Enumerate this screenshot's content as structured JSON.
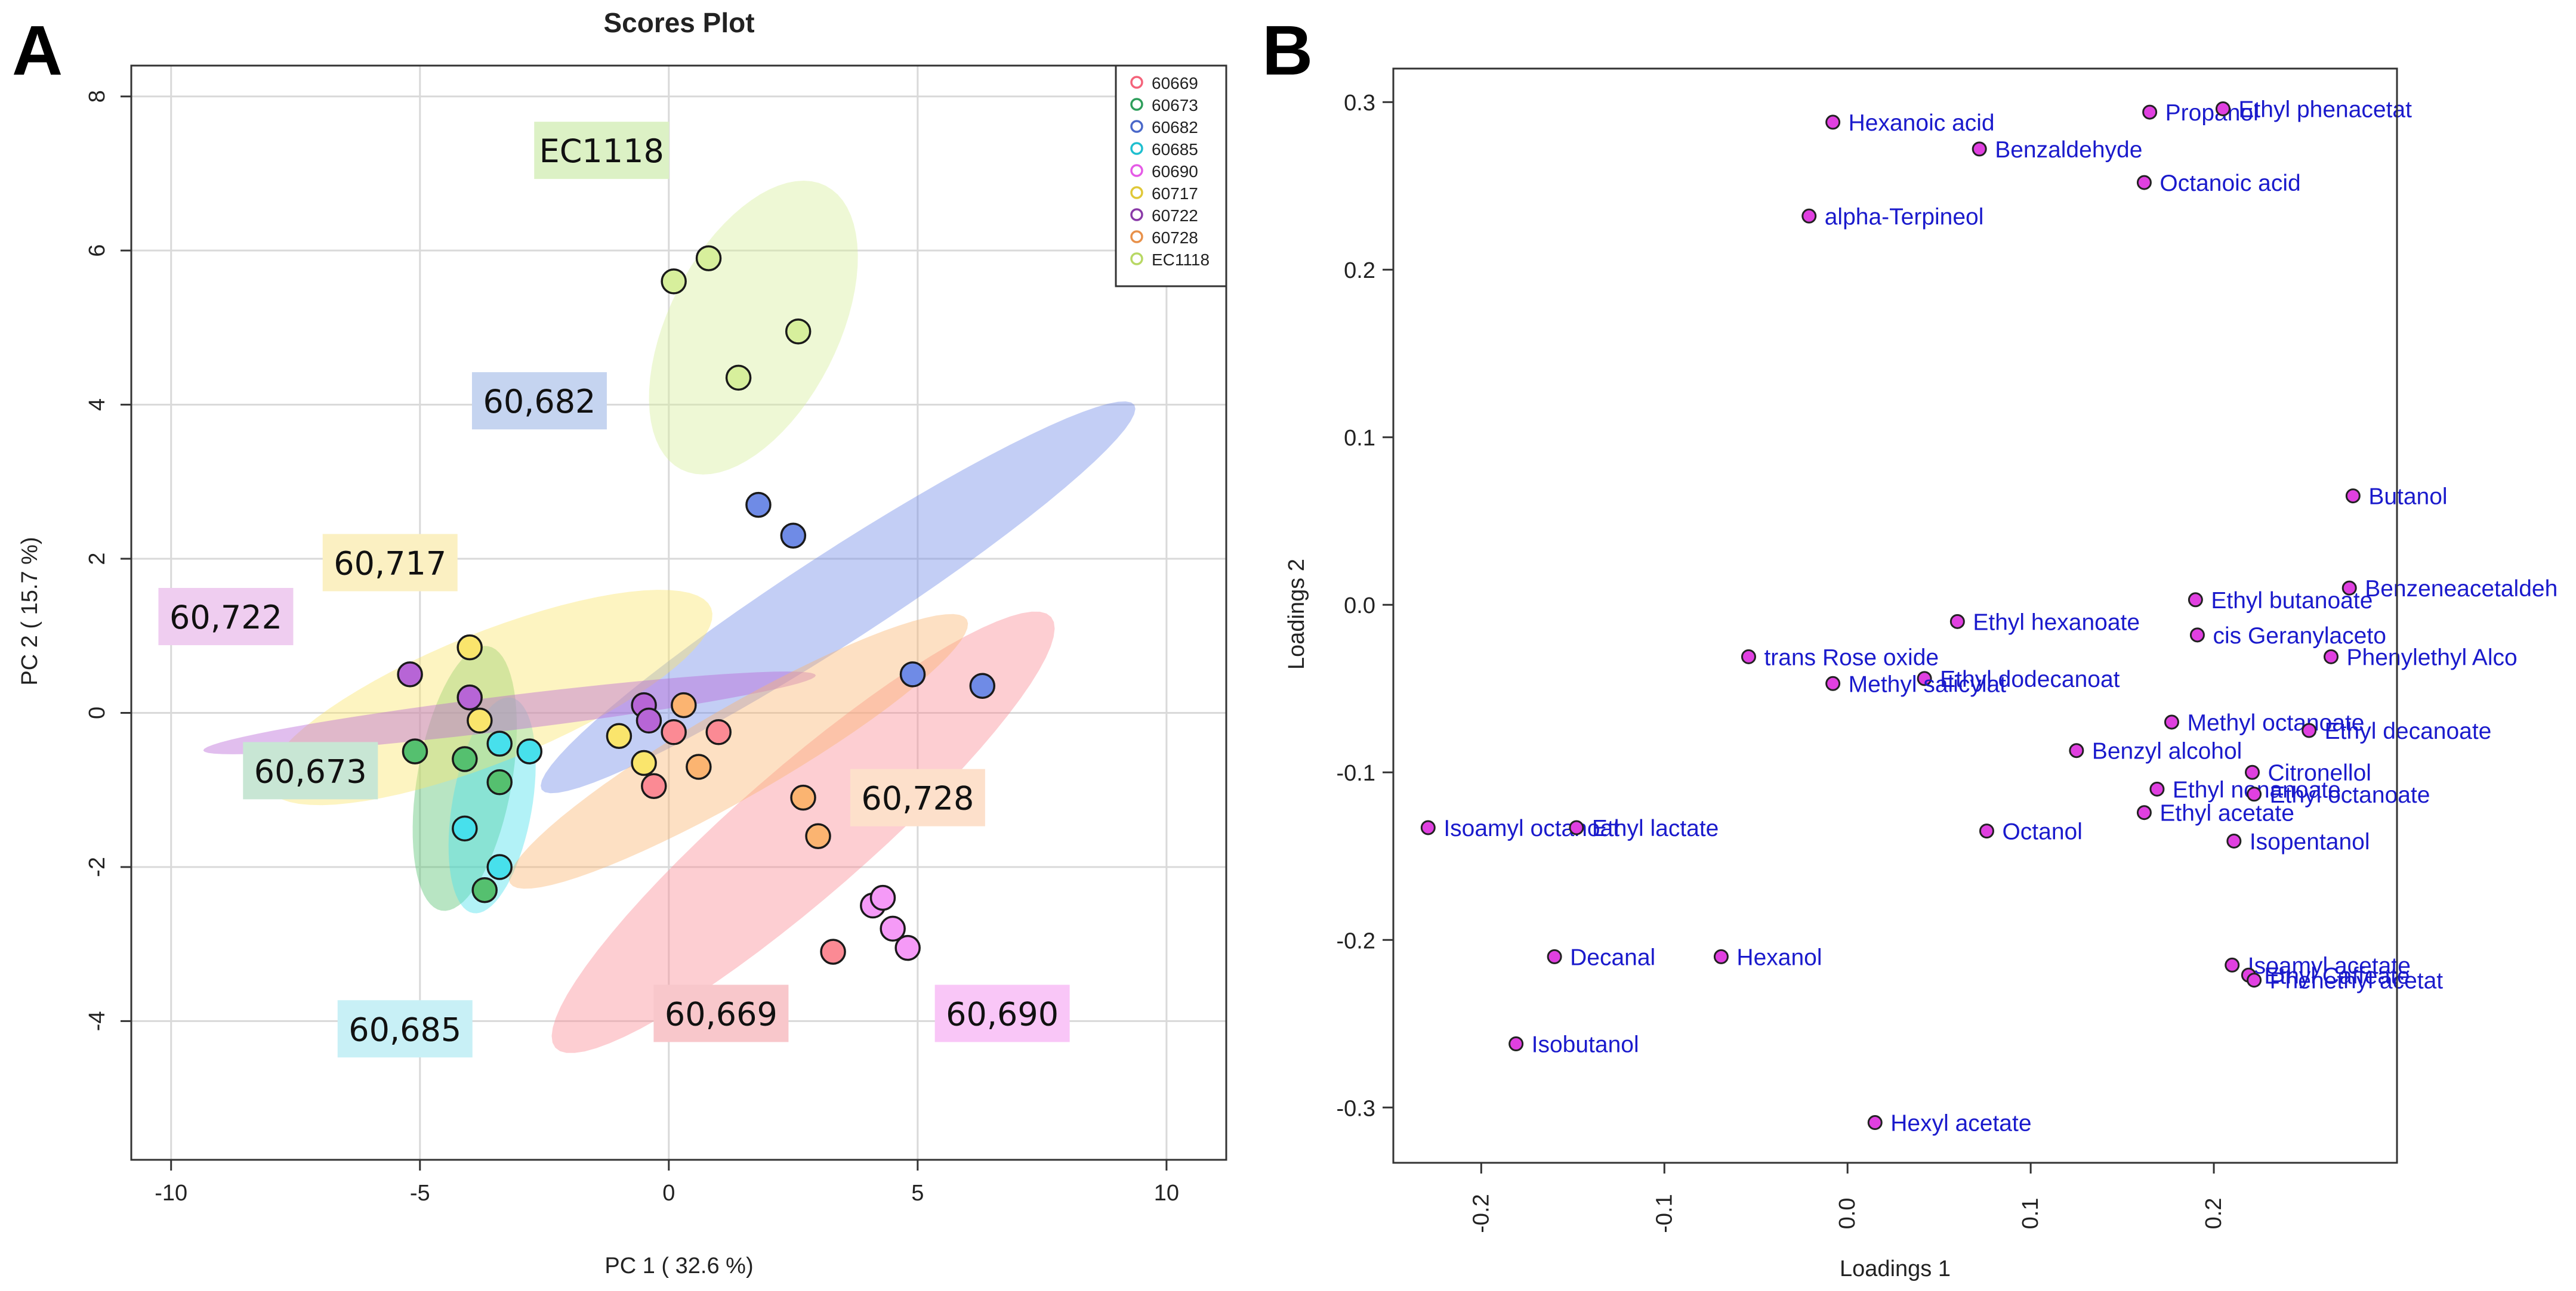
{
  "chart_data": [
    {
      "type": "scatter",
      "panel": "A",
      "title": "Scores Plot",
      "xlabel": "PC 1 ( 32.6 %)",
      "ylabel": "PC 2 ( 15.7 %)",
      "xlim": [
        -10.8,
        11.2
      ],
      "ylim": [
        -5.8,
        8.4
      ],
      "xticks": [
        -10,
        -5,
        0,
        5,
        10
      ],
      "yticks": [
        -4,
        -2,
        0,
        2,
        4,
        6,
        8
      ],
      "grid": true,
      "legend_position": "top-right",
      "series": [
        {
          "name": "60669",
          "color": "#f4637a",
          "fill": "#fb8a94",
          "ellipse": {
            "cx": 2.7,
            "cy": -1.55,
            "rx": 6.6,
            "ry": 1.3,
            "angle": -41
          },
          "points": [
            [
              3.3,
              -3.1
            ]
          ]
        },
        {
          "name": "60673",
          "color": "#2e9e5b",
          "fill": "#55c06f",
          "ellipse": {
            "cx": -4.1,
            "cy": -0.85,
            "rx": 2.7,
            "ry": 0.95,
            "angle": -80
          },
          "points": [
            [
              -5.1,
              -0.5
            ],
            [
              -4.1,
              -0.6
            ],
            [
              -3.4,
              -0.9
            ],
            [
              -3.7,
              -2.3
            ]
          ]
        },
        {
          "name": "60682",
          "color": "#4a68c9",
          "fill": "#6f8be6",
          "ellipse": {
            "cx": 3.4,
            "cy": 1.5,
            "rx": 7.1,
            "ry": 0.9,
            "angle": -33
          },
          "points": [
            [
              1.8,
              2.7
            ],
            [
              2.5,
              2.3
            ],
            [
              4.9,
              0.5
            ],
            [
              6.3,
              0.35
            ]
          ]
        },
        {
          "name": "60685",
          "color": "#1fbfcf",
          "fill": "#47e0ec",
          "ellipse": {
            "cx": -3.55,
            "cy": -1.2,
            "rx": 2.2,
            "ry": 0.8,
            "angle": -80
          },
          "points": [
            [
              -3.4,
              -0.4
            ],
            [
              -2.8,
              -0.5
            ],
            [
              -4.1,
              -1.5
            ],
            [
              -3.4,
              -2.0
            ]
          ]
        },
        {
          "name": "60690",
          "color": "#e55ae6",
          "fill": "#f59af7",
          "ellipse": null,
          "points": [
            [
              4.1,
              -2.5
            ],
            [
              4.3,
              -2.4
            ],
            [
              4.5,
              -2.8
            ],
            [
              4.8,
              -3.05
            ]
          ]
        },
        {
          "name": "60717",
          "color": "#e0c838",
          "fill": "#fae56c",
          "ellipse": {
            "cx": -3.6,
            "cy": 0.2,
            "rx": 4.8,
            "ry": 1.3,
            "angle": -22
          },
          "points": [
            [
              -4.0,
              0.85
            ],
            [
              -3.8,
              -0.1
            ],
            [
              -1.0,
              -0.3
            ],
            [
              -0.5,
              -0.65
            ]
          ]
        },
        {
          "name": "60722",
          "color": "#8a3aa8",
          "fill": "#b765d6",
          "ellipse": {
            "cx": -3.2,
            "cy": 0.0,
            "rx": 6.2,
            "ry": 0.35,
            "angle": -7
          },
          "points": [
            [
              -5.2,
              0.5
            ],
            [
              -4.0,
              0.2
            ],
            [
              -0.5,
              0.1
            ],
            [
              -0.4,
              -0.1
            ]
          ]
        },
        {
          "name": "60728",
          "color": "#e8914a",
          "fill": "#fbb471",
          "ellipse": {
            "cx": 1.4,
            "cy": -0.5,
            "rx": 5.3,
            "ry": 0.9,
            "angle": -30
          },
          "points": [
            [
              0.3,
              0.1
            ],
            [
              0.6,
              -0.7
            ],
            [
              2.7,
              -1.1
            ],
            [
              3.0,
              -1.6
            ]
          ]
        },
        {
          "name": "EC1118",
          "color": "#b8d864",
          "fill": "#d7ef9c",
          "ellipse": {
            "cx": 1.7,
            "cy": 5.0,
            "rx": 3.2,
            "ry": 1.7,
            "angle": -63
          },
          "points": [
            [
              0.1,
              5.6
            ],
            [
              0.8,
              5.9
            ],
            [
              2.6,
              4.95
            ],
            [
              1.4,
              4.35
            ]
          ]
        }
      ],
      "extra_points": [
        {
          "series": "60669",
          "points": [
            [
              0.1,
              -0.25
            ],
            [
              -0.3,
              -0.95
            ],
            [
              1.0,
              -0.25
            ]
          ]
        }
      ],
      "group_labels": [
        {
          "text": "EC1118",
          "series": "EC1118",
          "x": -1.35,
          "y": 7.3,
          "bg": "#dcf1c5"
        },
        {
          "text": "60,682",
          "series": "60682",
          "x": -2.6,
          "y": 4.05,
          "bg": "#c5d4f0"
        },
        {
          "text": "60,717",
          "series": "60717",
          "x": -5.6,
          "y": 1.95,
          "bg": "#fbf0c2"
        },
        {
          "text": "60,722",
          "series": "60722",
          "x": -8.9,
          "y": 1.25,
          "bg": "#efcdf0"
        },
        {
          "text": "60,673",
          "series": "60673",
          "x": -7.2,
          "y": -0.75,
          "bg": "#c8e6d4"
        },
        {
          "text": "60,728",
          "series": "60728",
          "x": 5.0,
          "y": -1.1,
          "bg": "#fde0cb"
        },
        {
          "text": "60,685",
          "series": "60685",
          "x": -5.3,
          "y": -4.1,
          "bg": "#c8f0f6"
        },
        {
          "text": "60,669",
          "series": "60669",
          "x": 1.05,
          "y": -3.9,
          "bg": "#f8c7cb"
        },
        {
          "text": "60,690",
          "series": "60690",
          "x": 6.7,
          "y": -3.9,
          "bg": "#f9c6f7"
        }
      ]
    },
    {
      "type": "scatter",
      "panel": "B",
      "title": "",
      "xlabel": "Loadings 1",
      "ylabel": "Loadings 2",
      "xlim": [
        -0.248,
        0.3
      ],
      "ylim": [
        -0.333,
        0.32
      ],
      "xticks": [
        -0.2,
        -0.1,
        0.0,
        0.1,
        0.2
      ],
      "yticks": [
        -0.3,
        -0.2,
        -0.1,
        0.0,
        0.1,
        0.2,
        0.3
      ],
      "grid": false,
      "point_color": "#e040e0",
      "label_color": "#1a1acc",
      "points": [
        {
          "label": "Hexanoic acid",
          "x": -0.008,
          "y": 0.288
        },
        {
          "label": "Propanol",
          "x": 0.165,
          "y": 0.294
        },
        {
          "label": "Ethyl phenacetat",
          "x": 0.205,
          "y": 0.296
        },
        {
          "label": "Benzaldehyde",
          "x": 0.072,
          "y": 0.272
        },
        {
          "label": "Octanoic acid",
          "x": 0.162,
          "y": 0.252
        },
        {
          "label": "alpha-Terpineol",
          "x": -0.021,
          "y": 0.232
        },
        {
          "label": "Butanol",
          "x": 0.276,
          "y": 0.065
        },
        {
          "label": "Benzeneacetaldeh",
          "x": 0.274,
          "y": 0.01
        },
        {
          "label": "Ethyl butanoate",
          "x": 0.19,
          "y": 0.003
        },
        {
          "label": "Ethyl hexanoate",
          "x": 0.06,
          "y": -0.01
        },
        {
          "label": "cis Geranylaceto",
          "x": 0.191,
          "y": -0.018
        },
        {
          "label": "Phenylethyl Alco",
          "x": 0.264,
          "y": -0.031
        },
        {
          "label": "trans Rose oxide",
          "x": -0.054,
          "y": -0.031
        },
        {
          "label": "Ethyl dodecanoat",
          "x": 0.042,
          "y": -0.044
        },
        {
          "label": "Methyl salicylat",
          "x": -0.008,
          "y": -0.047
        },
        {
          "label": "Methyl octanoate",
          "x": 0.177,
          "y": -0.07
        },
        {
          "label": "Ethyl decanoate",
          "x": 0.252,
          "y": -0.075
        },
        {
          "label": "Benzyl alcohol",
          "x": 0.125,
          "y": -0.087
        },
        {
          "label": "Citronellol",
          "x": 0.221,
          "y": -0.1
        },
        {
          "label": "Ethyl nonanoate",
          "x": 0.169,
          "y": -0.11
        },
        {
          "label": "Ethyl octanoate",
          "x": 0.222,
          "y": -0.113
        },
        {
          "label": "Ethyl acetate",
          "x": 0.162,
          "y": -0.124
        },
        {
          "label": "Isoamyl octanoat",
          "x": -0.229,
          "y": -0.133
        },
        {
          "label": "Ethyl lactate",
          "x": -0.148,
          "y": -0.133
        },
        {
          "label": "Octanol",
          "x": 0.076,
          "y": -0.135
        },
        {
          "label": "Isopentanol",
          "x": 0.211,
          "y": -0.141
        },
        {
          "label": "Decanal",
          "x": -0.16,
          "y": -0.21
        },
        {
          "label": "Hexanol",
          "x": -0.069,
          "y": -0.21
        },
        {
          "label": "Isoamyl acetate",
          "x": 0.21,
          "y": -0.215
        },
        {
          "label": "Ethyl Caffeate",
          "x": 0.219,
          "y": -0.221
        },
        {
          "label": "Phenethyl acetat",
          "x": 0.222,
          "y": -0.224
        },
        {
          "label": "Isobutanol",
          "x": -0.181,
          "y": -0.262
        },
        {
          "label": "Hexyl acetate",
          "x": 0.015,
          "y": -0.309
        }
      ]
    }
  ]
}
